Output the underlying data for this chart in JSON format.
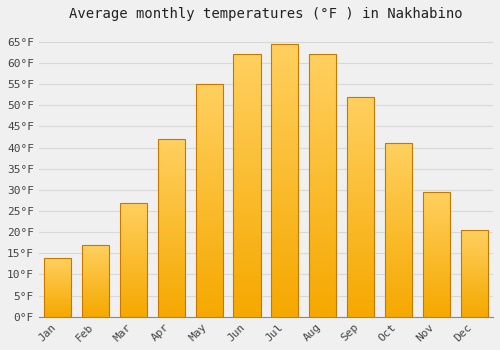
{
  "title": "Average monthly temperatures (°F ) in Nakhabino",
  "months": [
    "Jan",
    "Feb",
    "Mar",
    "Apr",
    "May",
    "Jun",
    "Jul",
    "Aug",
    "Sep",
    "Oct",
    "Nov",
    "Dec"
  ],
  "values": [
    14,
    17,
    27,
    42,
    55,
    62,
    64.5,
    62,
    52,
    41,
    29.5,
    20.5
  ],
  "bar_color_light": "#FFD060",
  "bar_color_dark": "#F5A800",
  "bar_edge_color": "#C87800",
  "ylim": [
    0,
    68
  ],
  "yticks": [
    0,
    5,
    10,
    15,
    20,
    25,
    30,
    35,
    40,
    45,
    50,
    55,
    60,
    65
  ],
  "ytick_labels": [
    "0°F",
    "5°F",
    "10°F",
    "15°F",
    "20°F",
    "25°F",
    "30°F",
    "35°F",
    "40°F",
    "45°F",
    "50°F",
    "55°F",
    "60°F",
    "65°F"
  ],
  "background_color": "#f0f0f0",
  "grid_color": "#d8d8d8",
  "title_fontsize": 10,
  "tick_fontsize": 8,
  "font_family": "monospace",
  "bar_width": 0.72
}
